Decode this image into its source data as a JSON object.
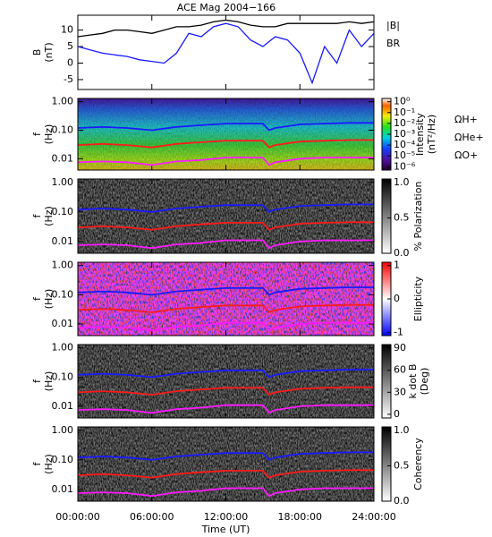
{
  "chart_data": [
    {
      "type": "line",
      "title": "ACE Mag 2004−166",
      "ylabel": [
        "B",
        "(nT)"
      ],
      "x": [
        0,
        1,
        2,
        3,
        4,
        5,
        6,
        7,
        8,
        9,
        10,
        11,
        12,
        13,
        14,
        15,
        16,
        17,
        18,
        19,
        20,
        21,
        22,
        23,
        24
      ],
      "xlim": [
        0,
        24
      ],
      "xticks": [
        0,
        6,
        12,
        18,
        24
      ],
      "ylim": [
        -8,
        14.5
      ],
      "yticks": [
        -5,
        0,
        5,
        10
      ],
      "series": [
        {
          "name": "|B|",
          "color": "#000000",
          "values": [
            8,
            8.5,
            9,
            10,
            10,
            9.5,
            9,
            10,
            11,
            11,
            11.5,
            12.5,
            13,
            12.5,
            11.5,
            11,
            11,
            12,
            12,
            12,
            12,
            12,
            12.5,
            12,
            12.5
          ]
        },
        {
          "name": "BR",
          "color": "#1a1aff",
          "values": [
            5,
            4,
            3,
            2.5,
            2,
            1,
            0.5,
            0,
            3,
            9,
            8,
            11,
            12,
            11,
            7,
            5,
            8,
            7,
            3,
            -6,
            5,
            0,
            10,
            5,
            9
          ]
        }
      ]
    },
    {
      "type": "spectrogram",
      "style": "intensity",
      "ylabel": [
        "f",
        "(Hz)"
      ],
      "log": true,
      "x": [
        0,
        2,
        4,
        6,
        8,
        10,
        12,
        14,
        15,
        15.5,
        16,
        18,
        20,
        22,
        24
      ],
      "xlim": [
        0,
        24
      ],
      "xticks": [
        0,
        6,
        12,
        18,
        24
      ],
      "ylim": [
        0.004,
        1.3
      ],
      "yticks": [
        {
          "value": 1,
          "label": "1.00"
        },
        {
          "value": 0.1,
          "label": "0.10"
        },
        {
          "value": 0.01,
          "label": "0.01"
        }
      ],
      "colorbar": {
        "label": [
          "Intensity",
          "(nT²/Hz)"
        ],
        "log": true,
        "lim": [
          5e-07,
          2
        ],
        "ticks": [
          {
            "value": 1,
            "label": "10⁰"
          },
          {
            "value": 0.1,
            "label": "10⁻¹"
          },
          {
            "value": 0.01,
            "label": "10⁻²"
          },
          {
            "value": 0.001,
            "label": "10⁻³"
          },
          {
            "value": 0.0001,
            "label": "10⁻⁴"
          },
          {
            "value": 1e-05,
            "label": "10⁻⁵"
          },
          {
            "value": 1e-06,
            "label": "10⁻⁶"
          }
        ]
      },
      "series": [
        {
          "name": "ΩH+",
          "color": "#1a1aff",
          "values": [
            0.12,
            0.13,
            0.12,
            0.1,
            0.13,
            0.15,
            0.17,
            0.17,
            0.17,
            0.1,
            0.12,
            0.16,
            0.17,
            0.18,
            0.18
          ]
        },
        {
          "name": "ΩHe+",
          "color": "#ff1a1a",
          "values": [
            0.03,
            0.033,
            0.03,
            0.025,
            0.033,
            0.038,
            0.043,
            0.043,
            0.043,
            0.025,
            0.03,
            0.04,
            0.043,
            0.045,
            0.045
          ]
        },
        {
          "name": "ΩO+",
          "color": "#ff1aff",
          "values": [
            0.0075,
            0.008,
            0.0075,
            0.006,
            0.008,
            0.009,
            0.011,
            0.011,
            0.011,
            0.006,
            0.0075,
            0.01,
            0.011,
            0.011,
            0.011
          ]
        }
      ]
    },
    {
      "type": "spectrogram",
      "style": "gray",
      "ylabel": [
        "f",
        "(Hz)"
      ],
      "log": true,
      "x": [
        0,
        2,
        4,
        6,
        8,
        10,
        12,
        14,
        15,
        15.5,
        16,
        18,
        20,
        22,
        24
      ],
      "xlim": [
        0,
        24
      ],
      "xticks": [
        0,
        6,
        12,
        18,
        24
      ],
      "ylim": [
        0.004,
        1.3
      ],
      "yticks": [
        {
          "value": 1,
          "label": "1.00"
        },
        {
          "value": 0.1,
          "label": "0.10"
        },
        {
          "value": 0.01,
          "label": "0.01"
        }
      ],
      "colorbar": {
        "label": [
          "% Polarization"
        ],
        "lim": [
          0,
          1.05
        ],
        "ticks": [
          {
            "value": 0,
            "label": "0.0"
          },
          {
            "value": 0.5,
            "label": "0.5"
          },
          {
            "value": 1,
            "label": "1.0"
          }
        ]
      },
      "series": [
        {
          "color": "#1a1aff",
          "values": [
            0.12,
            0.13,
            0.12,
            0.1,
            0.13,
            0.15,
            0.17,
            0.17,
            0.17,
            0.1,
            0.12,
            0.16,
            0.17,
            0.18,
            0.18
          ]
        },
        {
          "color": "#ff1a1a",
          "values": [
            0.03,
            0.033,
            0.03,
            0.025,
            0.033,
            0.038,
            0.043,
            0.043,
            0.043,
            0.025,
            0.03,
            0.04,
            0.043,
            0.045,
            0.045
          ]
        },
        {
          "color": "#ff1aff",
          "values": [
            0.0075,
            0.008,
            0.0075,
            0.006,
            0.008,
            0.009,
            0.011,
            0.011,
            0.011,
            0.006,
            0.0075,
            0.01,
            0.011,
            0.011,
            0.011
          ]
        }
      ]
    },
    {
      "type": "spectrogram",
      "style": "ellipticity",
      "ylabel": [
        "f",
        "(Hz)"
      ],
      "log": true,
      "x": [
        0,
        2,
        4,
        6,
        8,
        10,
        12,
        14,
        15,
        15.5,
        16,
        18,
        20,
        22,
        24
      ],
      "xlim": [
        0,
        24
      ],
      "xticks": [
        0,
        6,
        12,
        18,
        24
      ],
      "ylim": [
        0.004,
        1.3
      ],
      "yticks": [
        {
          "value": 1,
          "label": "1.00"
        },
        {
          "value": 0.1,
          "label": "0.10"
        },
        {
          "value": 0.01,
          "label": "0.01"
        }
      ],
      "colorbar": {
        "label": [
          "Ellipticity"
        ],
        "lim": [
          -1.1,
          1.1
        ],
        "ticks": [
          -1,
          0,
          1
        ]
      },
      "series": [
        {
          "color": "#1a1aff",
          "values": [
            0.12,
            0.13,
            0.12,
            0.1,
            0.13,
            0.15,
            0.17,
            0.17,
            0.17,
            0.1,
            0.12,
            0.16,
            0.17,
            0.18,
            0.18
          ]
        },
        {
          "color": "#ff1a1a",
          "values": [
            0.03,
            0.033,
            0.03,
            0.025,
            0.033,
            0.038,
            0.043,
            0.043,
            0.043,
            0.025,
            0.03,
            0.04,
            0.043,
            0.045,
            0.045
          ]
        },
        {
          "color": "#ff1aff",
          "values": [
            0.0075,
            0.008,
            0.0075,
            0.006,
            0.008,
            0.009,
            0.011,
            0.011,
            0.011,
            0.006,
            0.0075,
            0.01,
            0.011,
            0.011,
            0.011
          ]
        }
      ]
    },
    {
      "type": "spectrogram",
      "style": "gray",
      "ylabel": [
        "f",
        "(Hz)"
      ],
      "log": true,
      "x": [
        0,
        2,
        4,
        6,
        8,
        10,
        12,
        14,
        15,
        15.5,
        16,
        18,
        20,
        22,
        24
      ],
      "xlim": [
        0,
        24
      ],
      "xticks": [
        0,
        6,
        12,
        18,
        24
      ],
      "ylim": [
        0.004,
        1.3
      ],
      "yticks": [
        {
          "value": 1,
          "label": "1.00"
        },
        {
          "value": 0.1,
          "label": "0.10"
        },
        {
          "value": 0.01,
          "label": "0.01"
        }
      ],
      "colorbar": {
        "label": [
          "k dot B",
          "(Deg)"
        ],
        "lim": [
          -5,
          95
        ],
        "ticks": [
          0,
          30,
          60,
          90
        ]
      },
      "series": [
        {
          "color": "#1a1aff",
          "values": [
            0.12,
            0.13,
            0.12,
            0.1,
            0.13,
            0.15,
            0.17,
            0.17,
            0.17,
            0.1,
            0.12,
            0.16,
            0.17,
            0.18,
            0.18
          ]
        },
        {
          "color": "#ff1a1a",
          "values": [
            0.03,
            0.033,
            0.03,
            0.025,
            0.033,
            0.038,
            0.043,
            0.043,
            0.043,
            0.025,
            0.03,
            0.04,
            0.043,
            0.045,
            0.045
          ]
        },
        {
          "color": "#ff1aff",
          "values": [
            0.0075,
            0.008,
            0.0075,
            0.006,
            0.008,
            0.009,
            0.011,
            0.011,
            0.011,
            0.006,
            0.0075,
            0.01,
            0.011,
            0.011,
            0.011
          ]
        }
      ]
    },
    {
      "type": "spectrogram",
      "style": "gray",
      "ylabel": [
        "f",
        "(Hz)"
      ],
      "log": true,
      "x": [
        0,
        2,
        4,
        6,
        8,
        10,
        12,
        14,
        15,
        15.5,
        16,
        18,
        20,
        22,
        24
      ],
      "xlim": [
        0,
        24
      ],
      "xticks": [
        {
          "value": 0,
          "label": "00:00:00"
        },
        {
          "value": 6,
          "label": "06:00:00"
        },
        {
          "value": 12,
          "label": "12:00:00"
        },
        {
          "value": 18,
          "label": "18:00:00"
        },
        {
          "value": 24,
          "label": "24:00:00"
        }
      ],
      "xlabel": "Time (UT)",
      "ylim": [
        0.004,
        1.3
      ],
      "yticks": [
        {
          "value": 1,
          "label": "1.00"
        },
        {
          "value": 0.1,
          "label": "0.10"
        },
        {
          "value": 0.01,
          "label": "0.01"
        }
      ],
      "colorbar": {
        "label": [
          "Coherency"
        ],
        "lim": [
          0,
          1.05
        ],
        "ticks": [
          {
            "value": 0,
            "label": "0.0"
          },
          {
            "value": 0.5,
            "label": "0.5"
          },
          {
            "value": 1,
            "label": "1.0"
          }
        ]
      },
      "series": [
        {
          "color": "#1a1aff",
          "values": [
            0.12,
            0.13,
            0.12,
            0.1,
            0.13,
            0.15,
            0.17,
            0.17,
            0.17,
            0.1,
            0.12,
            0.16,
            0.17,
            0.18,
            0.18
          ]
        },
        {
          "color": "#ff1a1a",
          "values": [
            0.03,
            0.033,
            0.03,
            0.025,
            0.033,
            0.038,
            0.043,
            0.043,
            0.043,
            0.025,
            0.03,
            0.04,
            0.043,
            0.045,
            0.045
          ]
        },
        {
          "color": "#ff1aff",
          "values": [
            0.0075,
            0.008,
            0.0075,
            0.006,
            0.008,
            0.009,
            0.011,
            0.011,
            0.011,
            0.006,
            0.0075,
            0.01,
            0.011,
            0.011,
            0.011
          ]
        }
      ]
    }
  ]
}
